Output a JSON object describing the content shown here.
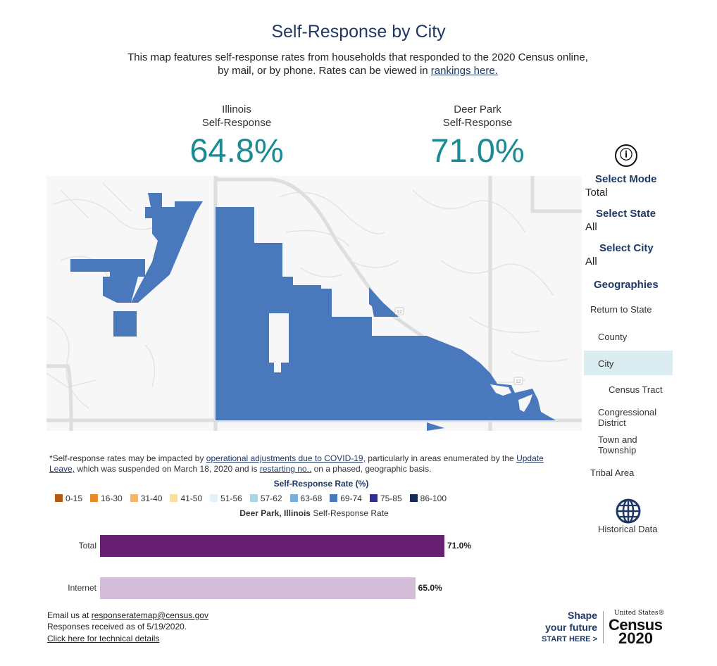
{
  "header": {
    "title": "Self-Response by City",
    "intro_text": "This map features self-response rates from households that responded to the 2020 Census online, by mail, or by phone. Rates can be viewed in",
    "rankings_link": "rankings here."
  },
  "stats": {
    "state": {
      "name": "Illinois",
      "label": "Self-Response",
      "value": "64.8%"
    },
    "city": {
      "name": "Deer Park",
      "label": "Self-Response",
      "value": "71.0%"
    }
  },
  "sidebar": {
    "info_icon": "ⓘ",
    "mode_heading": "Select Mode",
    "mode_value": "Total",
    "state_heading": "Select State",
    "state_value": "All",
    "city_heading": "Select City",
    "city_value": "All",
    "geographies_heading": "Geographies",
    "geographies": {
      "return": "Return to State",
      "county": "County",
      "city": "City",
      "tract": "Census Tract",
      "congressional_1": "Congressional",
      "congressional_2": "District",
      "town_1": "Town and",
      "town_2": "Township",
      "tribal": "Tribal Area"
    },
    "selected_geography": "City",
    "historical": "Historical Data"
  },
  "map": {
    "fill_color": "#4a78bd",
    "road_color": "#e2e2e2",
    "background": "#f7f7f7",
    "highway_shields": [
      "12",
      "12"
    ]
  },
  "note": {
    "part1": "*Self-response rates may be impacted by",
    "link1": "operational adjustments due to COVID-19,",
    "part2": "particularly in areas enumerated by the",
    "link2": "Update Leave,",
    "part3": "which was suspended on March 18, 2020 and is",
    "link3": "restarting no..",
    "part4": "on a phased, geographic basis."
  },
  "legend": {
    "title": "Self-Response Rate (%)",
    "items": [
      {
        "label": "0-15",
        "color": "#b65a12"
      },
      {
        "label": "16-30",
        "color": "#e98a26"
      },
      {
        "label": "31-40",
        "color": "#f6b567"
      },
      {
        "label": "41-50",
        "color": "#fbe09b"
      },
      {
        "label": "51-56",
        "color": "#e4f2f8"
      },
      {
        "label": "57-62",
        "color": "#a9d7e8"
      },
      {
        "label": "63-68",
        "color": "#78aed8"
      },
      {
        "label": "69-74",
        "color": "#4a78bd"
      },
      {
        "label": "75-85",
        "color": "#2e2f96"
      },
      {
        "label": "86-100",
        "color": "#172a55"
      }
    ]
  },
  "chart_data": {
    "type": "bar",
    "orientation": "horizontal",
    "title_bold": "Deer Park, Illinois",
    "title_rest": "Self-Response Rate",
    "categories": [
      "Total",
      "Internet"
    ],
    "values": [
      71.0,
      65.0
    ],
    "value_labels": [
      "71.0%",
      "65.0%"
    ],
    "colors": [
      "#661f71",
      "#d3bdd8"
    ],
    "xlim": [
      0,
      100
    ]
  },
  "footer": {
    "email_prefix": "Email us at",
    "email": "responseratemap@census.gov",
    "responses_as_of": "Responses received as of 5/19/2020.",
    "tech_link": "Click here for technical details"
  },
  "logo": {
    "shape_line1": "Shape",
    "shape_line2": "your future",
    "start_here": "START HERE >",
    "us": "United States®",
    "census": "Census",
    "year": "2020"
  }
}
